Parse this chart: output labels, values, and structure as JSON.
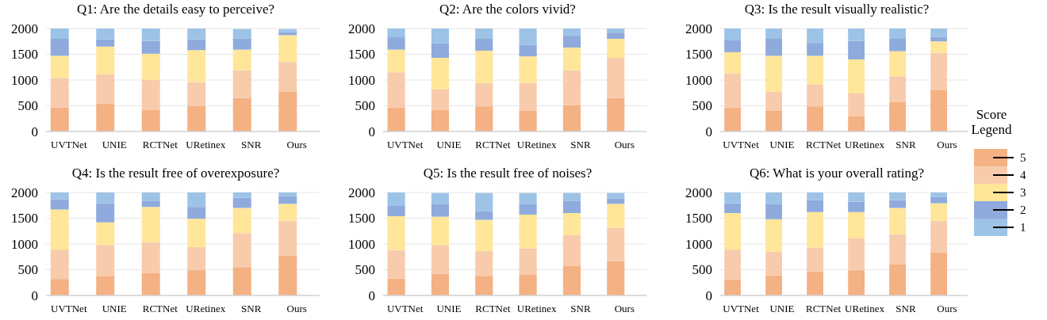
{
  "chart_data": [
    {
      "type": "bar",
      "title": "Q1: Are the details easy to perceive?",
      "categories": [
        "UVTNet",
        "UNIE",
        "RCTNet",
        "URetinex",
        "SNR",
        "Ours"
      ],
      "stacked": true,
      "ylim": [
        0,
        2000
      ],
      "yticks": [
        0,
        500,
        1000,
        1500,
        2000
      ],
      "grid": "y",
      "series": [
        {
          "color": "#f4b183",
          "values": [
            470,
            540,
            420,
            500,
            650,
            780
          ]
        },
        {
          "color": "#f8cbad",
          "values": [
            570,
            570,
            580,
            460,
            540,
            570
          ]
        },
        {
          "color": "#ffe699",
          "values": [
            430,
            540,
            510,
            620,
            400,
            520
          ]
        },
        {
          "color": "#8faadc",
          "values": [
            330,
            140,
            250,
            210,
            220,
            60
          ]
        },
        {
          "color": "#9dc3e6",
          "values": [
            200,
            210,
            240,
            210,
            180,
            60
          ]
        }
      ]
    },
    {
      "type": "bar",
      "title": "Q2: Are the colors vivid?",
      "categories": [
        "UVTNet",
        "UNIE",
        "RCTNet",
        "URetinex",
        "SNR",
        "Ours"
      ],
      "stacked": true,
      "ylim": [
        0,
        2000
      ],
      "yticks": [
        0,
        500,
        1000,
        1500,
        2000
      ],
      "grid": "y",
      "series": [
        {
          "color": "#f4b183",
          "values": [
            460,
            420,
            490,
            400,
            510,
            650
          ]
        },
        {
          "color": "#f8cbad",
          "values": [
            690,
            400,
            450,
            540,
            680,
            780
          ]
        },
        {
          "color": "#ffe699",
          "values": [
            440,
            610,
            630,
            520,
            440,
            370
          ]
        },
        {
          "color": "#8faadc",
          "values": [
            240,
            280,
            230,
            220,
            230,
            120
          ]
        },
        {
          "color": "#9dc3e6",
          "values": [
            170,
            290,
            200,
            320,
            140,
            80
          ]
        }
      ]
    },
    {
      "type": "bar",
      "title": "Q3: Is the result visually realistic?",
      "categories": [
        "UVTNet",
        "UNIE",
        "RCTNet",
        "URetinex",
        "SNR",
        "Ours"
      ],
      "stacked": true,
      "ylim": [
        0,
        2000
      ],
      "yticks": [
        0,
        500,
        1000,
        1500,
        2000
      ],
      "grid": "y",
      "legend": "right",
      "legend_title": "Score Legend",
      "series": [
        {
          "name": "5",
          "color": "#f4b183",
          "values": [
            460,
            410,
            490,
            300,
            570,
            800
          ]
        },
        {
          "name": "4",
          "color": "#f8cbad",
          "values": [
            670,
            360,
            420,
            440,
            500,
            730
          ]
        },
        {
          "name": "3",
          "color": "#ffe699",
          "values": [
            410,
            700,
            560,
            660,
            490,
            220
          ]
        },
        {
          "name": "2",
          "color": "#8faadc",
          "values": [
            240,
            330,
            250,
            360,
            240,
            90
          ]
        },
        {
          "name": "1",
          "color": "#9dc3e6",
          "values": [
            220,
            200,
            280,
            240,
            200,
            160
          ]
        }
      ]
    },
    {
      "type": "bar",
      "title": "Q4: Is the result free of overexposure?",
      "categories": [
        "UVTNet",
        "UNIE",
        "RCTNet",
        "URetinex",
        "SNR",
        "Ours"
      ],
      "stacked": true,
      "ylim": [
        0,
        2000
      ],
      "yticks": [
        0,
        500,
        1000,
        1500,
        2000
      ],
      "grid": "y",
      "series": [
        {
          "color": "#f4b183",
          "values": [
            320,
            370,
            440,
            500,
            550,
            770
          ]
        },
        {
          "color": "#f8cbad",
          "values": [
            570,
            610,
            600,
            440,
            660,
            680
          ]
        },
        {
          "color": "#ffe699",
          "values": [
            780,
            440,
            680,
            550,
            490,
            330
          ]
        },
        {
          "color": "#8faadc",
          "values": [
            200,
            370,
            120,
            230,
            200,
            150
          ]
        },
        {
          "color": "#9dc3e6",
          "values": [
            130,
            210,
            160,
            280,
            100,
            70
          ]
        }
      ]
    },
    {
      "type": "bar",
      "title": "Q5: Is the result free of noises?",
      "categories": [
        "UVTNet",
        "UNIE",
        "RCTNet",
        "URetinex",
        "SNR",
        "Ours"
      ],
      "stacked": true,
      "ylim": [
        0,
        2000
      ],
      "yticks": [
        0,
        500,
        1000,
        1500,
        2000
      ],
      "grid": "y",
      "series": [
        {
          "color": "#f4b183",
          "values": [
            330,
            420,
            380,
            400,
            570,
            670
          ]
        },
        {
          "color": "#f8cbad",
          "values": [
            550,
            560,
            480,
            510,
            600,
            640
          ]
        },
        {
          "color": "#ffe699",
          "values": [
            660,
            550,
            610,
            660,
            430,
            470
          ]
        },
        {
          "color": "#8faadc",
          "values": [
            210,
            250,
            160,
            210,
            240,
            100
          ]
        },
        {
          "color": "#9dc3e6",
          "values": [
            250,
            210,
            360,
            210,
            150,
            110
          ]
        }
      ]
    },
    {
      "type": "bar",
      "title": "Q6: What is your overall rating?",
      "categories": [
        "UVTNet",
        "UNIE",
        "RCTNet",
        "URetinex",
        "SNR",
        "Ours"
      ],
      "stacked": true,
      "ylim": [
        0,
        2000
      ],
      "yticks": [
        0,
        500,
        1000,
        1500,
        2000
      ],
      "grid": "y",
      "series": [
        {
          "color": "#f4b183",
          "values": [
            310,
            390,
            460,
            490,
            610,
            830
          ]
        },
        {
          "color": "#f8cbad",
          "values": [
            580,
            460,
            470,
            620,
            580,
            620
          ]
        },
        {
          "color": "#ffe699",
          "values": [
            710,
            630,
            690,
            510,
            510,
            340
          ]
        },
        {
          "color": "#8faadc",
          "values": [
            190,
            300,
            230,
            200,
            150,
            120
          ]
        },
        {
          "color": "#9dc3e6",
          "values": [
            210,
            220,
            150,
            180,
            150,
            90
          ]
        }
      ]
    }
  ]
}
